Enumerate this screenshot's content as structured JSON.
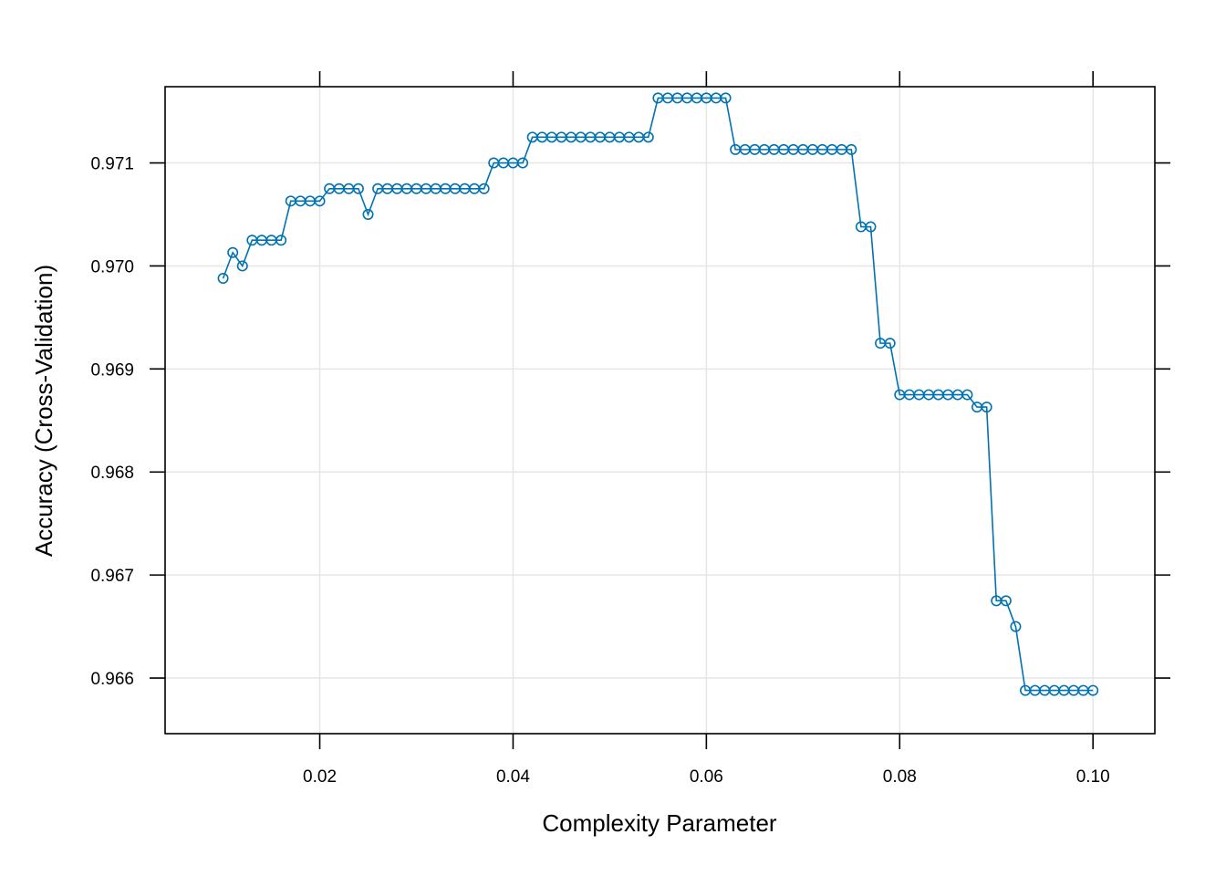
{
  "chart_data": {
    "type": "line",
    "xlabel": "Complexity Parameter",
    "ylabel": "Accuracy (Cross-Validation)",
    "xlim": [
      0.004,
      0.1064
    ],
    "ylim": [
      0.96546,
      0.97174
    ],
    "xticks": [
      0.02,
      0.04,
      0.06,
      0.08,
      0.1
    ],
    "xtick_labels": [
      "0.02",
      "0.04",
      "0.06",
      "0.08",
      "0.10"
    ],
    "yticks": [
      0.966,
      0.967,
      0.968,
      0.969,
      0.97,
      0.971
    ],
    "ytick_labels": [
      "0.966",
      "0.967",
      "0.968",
      "0.969",
      "0.970",
      "0.971"
    ],
    "grid": true,
    "series_color": "#0072b2",
    "x": [
      0.01,
      0.011,
      0.012,
      0.013,
      0.014,
      0.015,
      0.016,
      0.017,
      0.018,
      0.019,
      0.02,
      0.021,
      0.022,
      0.023,
      0.024,
      0.025,
      0.026,
      0.027,
      0.028,
      0.029,
      0.03,
      0.031,
      0.032,
      0.033,
      0.034,
      0.035,
      0.036,
      0.037,
      0.038,
      0.039,
      0.04,
      0.041,
      0.042,
      0.043,
      0.044,
      0.045,
      0.046,
      0.047,
      0.048,
      0.049,
      0.05,
      0.051,
      0.052,
      0.053,
      0.054,
      0.055,
      0.056,
      0.057,
      0.058,
      0.059,
      0.06,
      0.061,
      0.062,
      0.063,
      0.064,
      0.065,
      0.066,
      0.067,
      0.068,
      0.069,
      0.07,
      0.071,
      0.072,
      0.073,
      0.074,
      0.075,
      0.076,
      0.077,
      0.078,
      0.079,
      0.08,
      0.081,
      0.082,
      0.083,
      0.084,
      0.085,
      0.086,
      0.087,
      0.088,
      0.089,
      0.09,
      0.091,
      0.092,
      0.093,
      0.094,
      0.095,
      0.096,
      0.097,
      0.098,
      0.099,
      0.1
    ],
    "y": [
      0.96988,
      0.97013,
      0.97,
      0.97025,
      0.97025,
      0.97025,
      0.97025,
      0.97063,
      0.97063,
      0.97063,
      0.97063,
      0.97075,
      0.97075,
      0.97075,
      0.97075,
      0.9705,
      0.97075,
      0.97075,
      0.97075,
      0.97075,
      0.97075,
      0.97075,
      0.97075,
      0.97075,
      0.97075,
      0.97075,
      0.97075,
      0.97075,
      0.971,
      0.971,
      0.971,
      0.971,
      0.97125,
      0.97125,
      0.97125,
      0.97125,
      0.97125,
      0.97125,
      0.97125,
      0.97125,
      0.97125,
      0.97125,
      0.97125,
      0.97125,
      0.97125,
      0.97163,
      0.97163,
      0.97163,
      0.97163,
      0.97163,
      0.97163,
      0.97163,
      0.97163,
      0.97113,
      0.97113,
      0.97113,
      0.97113,
      0.97113,
      0.97113,
      0.97113,
      0.97113,
      0.97113,
      0.97113,
      0.97113,
      0.97113,
      0.97113,
      0.97038,
      0.97038,
      0.96925,
      0.96925,
      0.96875,
      0.96875,
      0.96875,
      0.96875,
      0.96875,
      0.96875,
      0.96875,
      0.96875,
      0.96863,
      0.96863,
      0.96675,
      0.96675,
      0.9665,
      0.96588,
      0.96588,
      0.96588,
      0.96588,
      0.96588,
      0.96588,
      0.96588,
      0.96588
    ]
  }
}
